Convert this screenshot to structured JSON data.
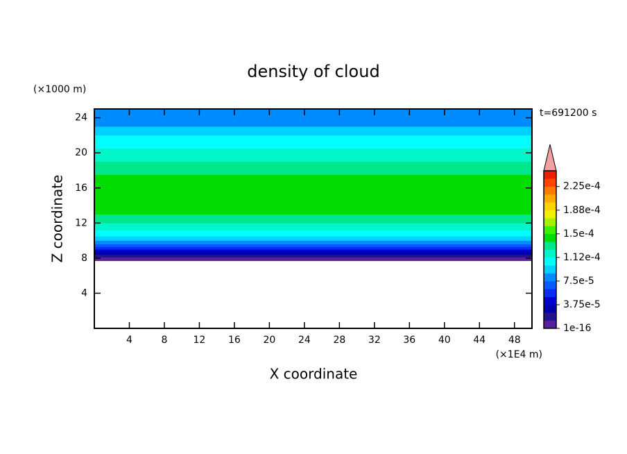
{
  "chart_data": {
    "type": "contour",
    "title": "density of cloud",
    "x_label": "X coordinate",
    "x_unit": "(×1E4 m)",
    "y_label": "Z coordinate",
    "y_unit": "(×1000 m)",
    "time_label": "t=691200 s",
    "xlim": [
      0,
      50
    ],
    "ylim": [
      0,
      25
    ],
    "xticks": [
      4,
      8,
      12,
      16,
      20,
      24,
      28,
      32,
      36,
      40,
      44,
      48
    ],
    "yticks": [
      4,
      8,
      12,
      16,
      20,
      24
    ],
    "z_edges": [
      7.7,
      8.1,
      8.4,
      8.7,
      9.0,
      9.3,
      9.6,
      10.0,
      10.5,
      11.2,
      12.0,
      13.0,
      17.5,
      19.0,
      20.5,
      22.0,
      23.0,
      24.2,
      25
    ],
    "values": [
      6e-06,
      1.9e-05,
      3.1e-05,
      4.4e-05,
      5.6e-05,
      6.9e-05,
      8.1e-05,
      9.4e-05,
      0.000106,
      0.000119,
      0.000131,
      0.000144,
      0.000131,
      0.000119,
      0.000106,
      9.4e-05,
      8.1e-05,
      8.1e-05
    ],
    "levels": [
      1e-16,
      1.25e-05,
      2.5e-05,
      3.75e-05,
      5e-05,
      6.25e-05,
      7.5e-05,
      8.75e-05,
      0.0001,
      0.0001125,
      0.000125,
      0.0001375,
      0.00015,
      0.0001625,
      0.000175,
      0.0001875,
      0.0002,
      0.0002125,
      0.000225,
      0.0002375,
      0.00025
    ],
    "colors": [
      "#5a1ea0",
      "#23148c",
      "#0000aa",
      "#0000d2",
      "#0a2df5",
      "#0a5aff",
      "#008cff",
      "#00d2ff",
      "#00ffff",
      "#00f5c8",
      "#00e68c",
      "#00dc00",
      "#3cf000",
      "#aaf000",
      "#f0f000",
      "#ffd200",
      "#ffaa00",
      "#ff7800",
      "#ff4600",
      "#f01e00"
    ],
    "extend_color": "#f4a0a0",
    "colorbar_ticks": [
      {
        "value": 1e-16,
        "label": "1e-16"
      },
      {
        "value": 3.75e-05,
        "label": "3.75e-5"
      },
      {
        "value": 7.5e-05,
        "label": "7.5e-5"
      },
      {
        "value": 0.0001125,
        "label": "1.12e-4"
      },
      {
        "value": 0.00015,
        "label": "1.5e-4"
      },
      {
        "value": 0.0001875,
        "label": "1.88e-4"
      },
      {
        "value": 0.000225,
        "label": "2.25e-4"
      }
    ]
  }
}
